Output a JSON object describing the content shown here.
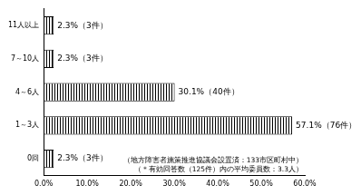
{
  "chart_data": {
    "type": "bar",
    "orientation": "horizontal",
    "categories": [
      "11人以上",
      "7～10人",
      "4～6人",
      "1～3人",
      "0回"
    ],
    "values": [
      2.3,
      2.3,
      30.1,
      57.1,
      2.3
    ],
    "value_labels": [
      "2.3%（3件）",
      "2.3%（3件）",
      "30.1%（40件）",
      "57.1%（76件）",
      "2.3%（3件）"
    ],
    "data_labels": true,
    "color": "#000000",
    "xlim": [
      0,
      60
    ],
    "xticks": [
      {
        "value": 0,
        "label": "0.0%"
      },
      {
        "value": 10,
        "label": "10.0%"
      },
      {
        "value": 20,
        "label": "20.0%"
      },
      {
        "value": 30,
        "label": "30.0%"
      },
      {
        "value": 40,
        "label": "40.0%"
      },
      {
        "value": 50,
        "label": "50.0%"
      },
      {
        "value": 60,
        "label": "60.0%"
      }
    ],
    "grid": false,
    "annotations": [
      "（地方障害者施策推進協議会設置済：133市区町村中）",
      "（＊有効回答数（125件）内の平均委員数：3.3人）"
    ]
  }
}
